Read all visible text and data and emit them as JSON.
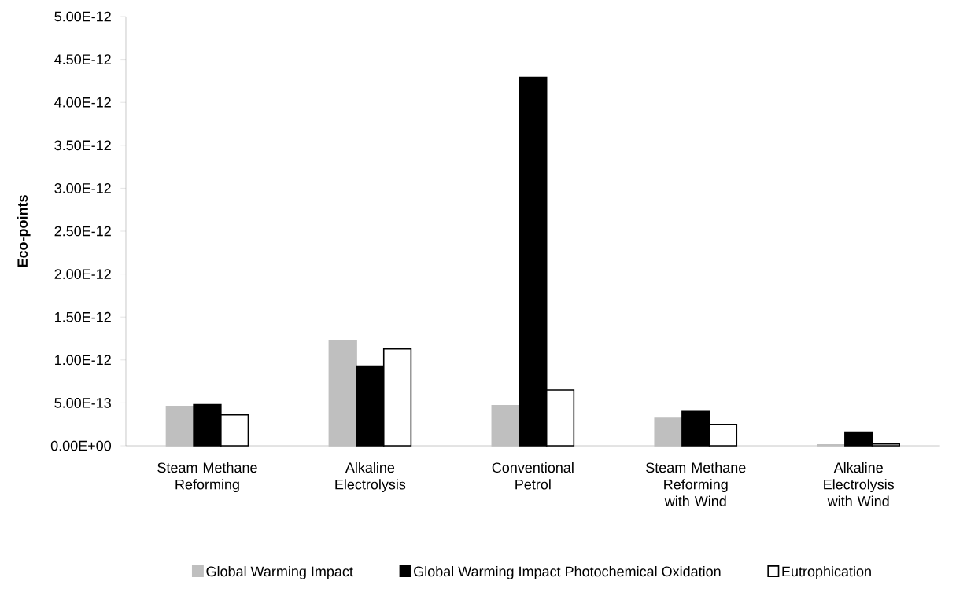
{
  "chart_data": {
    "type": "bar",
    "ylabel": "**Eco-points**",
    "categories": [
      "Steam Methane Reforming",
      "Alkaline Electrolysis",
      "Conventional Petrol",
      "Steam Methane Reforming with Wind",
      "Alkaline Electrolysis with Wind"
    ],
    "series": [
      {
        "name": "Global Warming Impact",
        "color": "#bfbfbf",
        "values": [
          4.6e-13,
          1.23e-12,
          4.7e-13,
          3.3e-13,
          1e-14
        ]
      },
      {
        "name": "Global Warming Impact Photochemical Oxidation",
        "color": "#000000",
        "values": [
          4.8e-13,
          9.3e-13,
          4.29e-12,
          4e-13,
          1.6e-13
        ]
      },
      {
        "name": "Eutrophication",
        "color": "#ffffff",
        "values": [
          3.6e-13,
          1.13e-12,
          6.5e-13,
          2.5e-13,
          2e-14
        ]
      }
    ],
    "ylim": [
      0,
      5e-12
    ],
    "yticks": [
      {
        "value": 0,
        "label": "0.00E+00"
      },
      {
        "value": 5e-13,
        "label": "5.00E-13"
      },
      {
        "value": 1e-12,
        "label": "1.00E-12"
      },
      {
        "value": 1.5e-12,
        "label": "1.50E-12"
      },
      {
        "value": 2e-12,
        "label": "2.00E-12"
      },
      {
        "value": 2.5e-12,
        "label": "2.50E-12"
      },
      {
        "value": 3e-12,
        "label": "3.00E-12"
      },
      {
        "value": 3.5e-12,
        "label": "3.50E-12"
      },
      {
        "value": 4e-12,
        "label": "4.00E-12"
      },
      {
        "value": 4.5e-12,
        "label": "4.50E-12"
      },
      {
        "value": 5e-12,
        "label": "5.00E-12"
      }
    ],
    "grid": false,
    "legend": "bottom"
  }
}
